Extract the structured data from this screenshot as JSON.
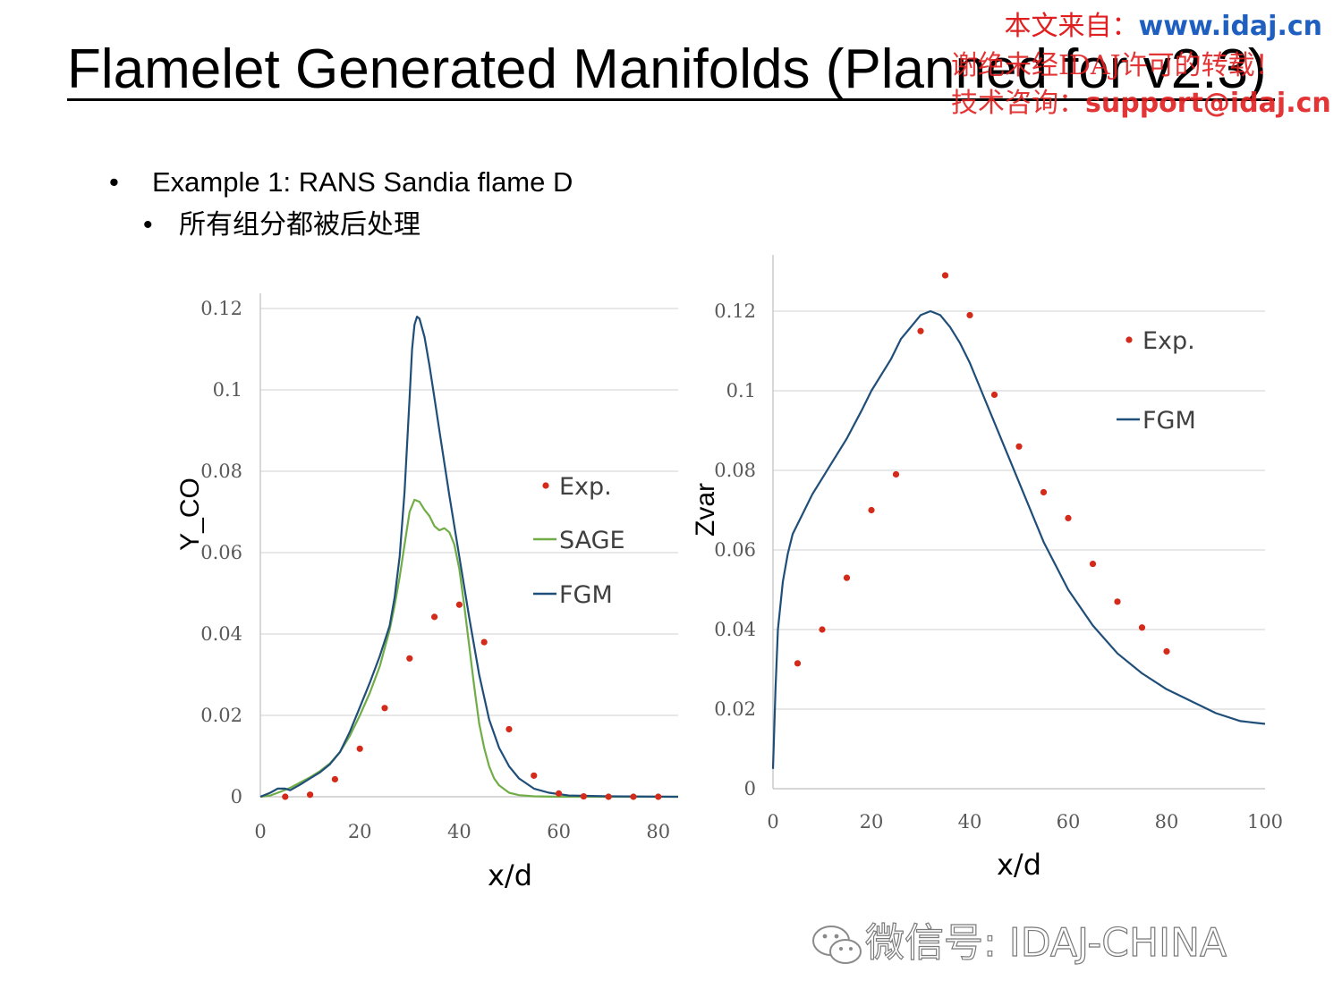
{
  "slide": {
    "title": "Flamelet Generated Manifolds (Planned for v2.3)",
    "bullets": [
      {
        "text": "Example 1: RANS Sandia flame D"
      },
      {
        "text": "所有组分都被后处理"
      }
    ]
  },
  "watermark": {
    "line1_prefix": "本文来自：",
    "line1_url": "www.idaj.cn",
    "line2": "谢绝未经IDAJ许可的转载！",
    "line3_prefix": "技术咨询：",
    "line3_email": "support@idaj.cn"
  },
  "footer": {
    "icon": "wechat-icon",
    "text": "微信号: IDAJ-CHINA"
  },
  "colors": {
    "exp": "#d42a1a",
    "sage": "#70ad47",
    "fgm": "#1f4e79",
    "grid": "#d9d9d9"
  },
  "chart_data": [
    {
      "type": "line",
      "xlabel": "x/d",
      "ylabel": "Y_CO",
      "xlim": [
        0,
        84
      ],
      "ylim": [
        0,
        0.12
      ],
      "x_ticks": [
        "0",
        "20",
        "40",
        "60",
        "80"
      ],
      "y_ticks": [
        "0",
        "0.02",
        "0.04",
        "0.06",
        "0.08",
        "0.1",
        "0.12"
      ],
      "grid": true,
      "legend": "right",
      "series": [
        {
          "name": "Exp.",
          "kind": "scatter",
          "x": [
            5,
            10,
            15,
            20,
            25,
            30,
            35,
            40,
            45,
            50,
            55,
            60,
            65,
            70,
            75,
            80
          ],
          "y": [
            0.0,
            0.0005,
            0.0043,
            0.0118,
            0.0218,
            0.034,
            0.0442,
            0.0472,
            0.038,
            0.0166,
            0.0052,
            0.0008,
            0.0001,
            0.0,
            0.0,
            0.0
          ]
        },
        {
          "name": "SAGE",
          "kind": "line",
          "x": [
            0,
            2,
            4,
            6,
            8,
            10,
            12,
            14,
            16,
            18,
            20,
            22,
            24,
            26,
            27,
            28,
            29,
            30,
            31,
            32,
            33,
            34,
            35,
            36,
            37,
            38,
            39,
            40,
            41,
            42,
            43,
            44,
            45,
            46,
            47,
            48,
            50,
            52,
            55,
            60,
            70,
            84
          ],
          "y": [
            0,
            0.0003,
            0.0012,
            0.0022,
            0.0035,
            0.0048,
            0.0063,
            0.0082,
            0.011,
            0.015,
            0.02,
            0.0255,
            0.032,
            0.041,
            0.047,
            0.054,
            0.062,
            0.07,
            0.073,
            0.0725,
            0.0705,
            0.069,
            0.0665,
            0.0655,
            0.066,
            0.065,
            0.062,
            0.056,
            0.047,
            0.037,
            0.027,
            0.018,
            0.012,
            0.0075,
            0.0045,
            0.0028,
            0.001,
            0.0004,
            0.0001,
            0.0,
            0.0,
            0.0
          ]
        },
        {
          "name": "FGM",
          "kind": "line",
          "x": [
            0,
            2,
            3.5,
            5,
            6,
            8,
            10,
            12,
            14,
            16,
            18,
            20,
            22,
            24,
            26,
            27,
            28,
            29,
            30,
            30.5,
            31,
            31.5,
            32,
            33,
            34,
            35,
            36,
            37,
            38,
            40,
            42,
            44,
            46,
            48,
            50,
            52,
            55,
            58,
            62,
            70,
            84
          ],
          "y": [
            0,
            0.001,
            0.002,
            0.002,
            0.0016,
            0.003,
            0.0045,
            0.006,
            0.008,
            0.011,
            0.016,
            0.022,
            0.028,
            0.0345,
            0.042,
            0.049,
            0.059,
            0.075,
            0.098,
            0.11,
            0.116,
            0.118,
            0.1175,
            0.113,
            0.106,
            0.098,
            0.09,
            0.082,
            0.074,
            0.059,
            0.044,
            0.03,
            0.019,
            0.012,
            0.0075,
            0.0045,
            0.002,
            0.001,
            0.0003,
            0.0001,
            0.0
          ]
        }
      ]
    },
    {
      "type": "line",
      "xlabel": "x/d",
      "ylabel": "Zvar",
      "xlim": [
        0,
        100
      ],
      "ylim": [
        0,
        0.12
      ],
      "x_ticks": [
        "0",
        "20",
        "40",
        "60",
        "80",
        "100"
      ],
      "y_ticks": [
        "0",
        "0.02",
        "0.04",
        "0.06",
        "0.08",
        "0.1",
        "0.12"
      ],
      "grid": true,
      "legend": "right",
      "series": [
        {
          "name": "Exp.",
          "kind": "scatter",
          "x": [
            5,
            10,
            15,
            20,
            25,
            30,
            35,
            40,
            45,
            50,
            55,
            60,
            65,
            70,
            75,
            80
          ],
          "y": [
            0.0315,
            0.04,
            0.053,
            0.07,
            0.079,
            0.115,
            0.129,
            0.119,
            0.099,
            0.086,
            0.0745,
            0.068,
            0.0565,
            0.047,
            0.0405,
            0.0345
          ]
        },
        {
          "name": "FGM",
          "kind": "line",
          "x": [
            0,
            0.5,
            1,
            2,
            3,
            4,
            6,
            8,
            10,
            12,
            15,
            18,
            20,
            22,
            24,
            26,
            28,
            30,
            32,
            34,
            36,
            38,
            40,
            42,
            45,
            48,
            50,
            55,
            60,
            65,
            70,
            75,
            80,
            85,
            90,
            95,
            100
          ],
          "y": [
            0.005,
            0.025,
            0.04,
            0.052,
            0.059,
            0.064,
            0.069,
            0.074,
            0.078,
            0.082,
            0.088,
            0.095,
            0.1,
            0.104,
            0.108,
            0.113,
            0.116,
            0.119,
            0.12,
            0.119,
            0.116,
            0.112,
            0.107,
            0.101,
            0.092,
            0.083,
            0.077,
            0.062,
            0.05,
            0.041,
            0.034,
            0.029,
            0.025,
            0.022,
            0.019,
            0.017,
            0.0163
          ]
        }
      ]
    }
  ]
}
